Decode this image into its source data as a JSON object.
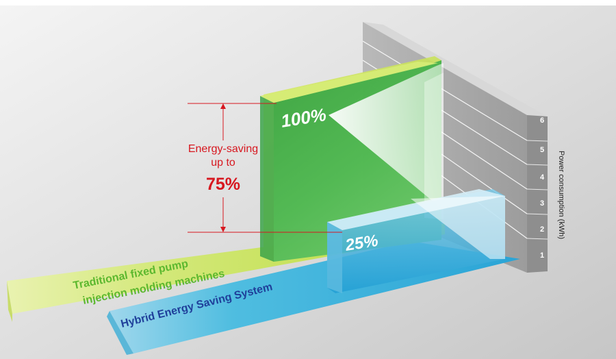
{
  "chart_data": {
    "type": "bar",
    "categories": [
      "Traditional fixed pump injection molding machines",
      "Hybrid Energy Saving System"
    ],
    "category_lines": [
      [
        "Traditional fixed pump",
        "injection molding machines"
      ],
      [
        "Hybrid Energy Saving System"
      ]
    ],
    "values": [
      100,
      25
    ],
    "value_labels": [
      "100%",
      "25%"
    ],
    "unit": "%",
    "ylabel": "Power consumption (kWh)",
    "yticks": [
      "1",
      "2",
      "3",
      "4",
      "5",
      "6"
    ],
    "annotation": {
      "lines": [
        "Energy-saving",
        "up to"
      ],
      "value": "75%"
    },
    "colors": {
      "traditional": "#bfe04a",
      "hybrid": "#2aa6d8",
      "traditional_bar": "#3cb04a",
      "annotation": "#d7171f",
      "label_traditional": "#5cb82e",
      "label_hybrid": "#1f3f9a"
    }
  }
}
